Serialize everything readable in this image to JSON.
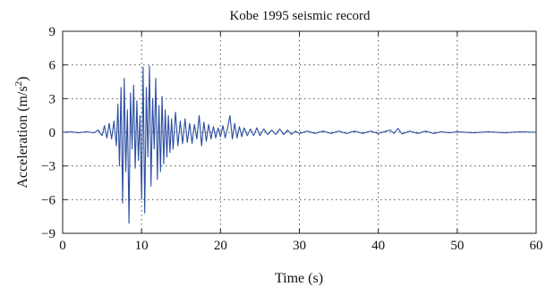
{
  "chart_data": {
    "type": "line",
    "title": "Kobe 1995 seismic record",
    "xlabel": "Time (s)",
    "ylabel_main": "Acceleration (m/s",
    "ylabel_sup": "2",
    "ylabel_end": ")",
    "xlim": [
      0,
      60
    ],
    "ylim": [
      -9,
      9
    ],
    "xticks": [
      0,
      10,
      20,
      30,
      40,
      50,
      60
    ],
    "yticks": [
      -9,
      -6,
      -3,
      0,
      3,
      6,
      9
    ],
    "xtick_labels": [
      "0",
      "10",
      "20",
      "30",
      "40",
      "50",
      "60"
    ],
    "ytick_labels": [
      "−9",
      "−6",
      "−3",
      "0",
      "3",
      "6",
      "9"
    ],
    "grid": true,
    "line_color": "#2b4ea2",
    "series": [
      {
        "x": [
          0,
          1,
          2,
          3,
          4,
          4.5,
          5,
          5.3,
          5.6,
          5.9,
          6.2,
          6.5,
          6.8,
          7.0,
          7.2,
          7.4,
          7.6,
          7.8,
          8.0,
          8.2,
          8.4,
          8.6,
          8.8,
          9.0,
          9.2,
          9.4,
          9.6,
          9.8,
          10.0,
          10.2,
          10.4,
          10.6,
          10.8,
          11.0,
          11.2,
          11.4,
          11.6,
          11.8,
          12.0,
          12.2,
          12.4,
          12.6,
          12.8,
          13.0,
          13.2,
          13.4,
          13.6,
          13.8,
          14.0,
          14.3,
          14.6,
          14.9,
          15.2,
          15.5,
          15.8,
          16.1,
          16.4,
          16.7,
          17.0,
          17.3,
          17.6,
          17.9,
          18.2,
          18.5,
          18.8,
          19.1,
          19.4,
          19.7,
          20.0,
          20.3,
          20.6,
          20.9,
          21.2,
          21.5,
          21.8,
          22.1,
          22.4,
          22.7,
          23.0,
          23.4,
          23.8,
          24.2,
          24.6,
          25.0,
          25.5,
          26.0,
          26.5,
          27.0,
          27.5,
          28.0,
          28.5,
          29.0,
          29.5,
          30.0,
          31,
          32,
          33,
          34,
          35,
          36,
          37,
          38,
          39,
          40,
          41,
          41.5,
          42.0,
          42.5,
          43,
          44,
          45,
          46,
          47,
          48,
          49,
          50,
          52,
          54,
          56,
          58,
          60
        ],
        "y": [
          0,
          0.05,
          -0.05,
          0.05,
          -0.05,
          0.2,
          -0.3,
          0.6,
          -0.5,
          0.8,
          -0.6,
          1.0,
          -1.2,
          2.5,
          -3.0,
          4.0,
          -6.3,
          4.8,
          -3.5,
          2.0,
          -8.1,
          3.5,
          -1.5,
          4.2,
          -3.2,
          2.8,
          -2.5,
          1.5,
          -6.0,
          5.8,
          -7.2,
          4.0,
          -2.2,
          5.9,
          -4.8,
          3.0,
          -1.5,
          4.8,
          -4.2,
          2.4,
          -3.5,
          3.2,
          -2.8,
          2.0,
          -2.2,
          1.5,
          -1.8,
          1.2,
          -1.5,
          1.8,
          -1.2,
          1.0,
          -1.0,
          1.2,
          -0.9,
          0.8,
          -1.0,
          0.7,
          -0.6,
          1.5,
          -1.2,
          0.9,
          -0.8,
          0.7,
          -0.6,
          0.5,
          -0.5,
          0.4,
          -0.4,
          0.6,
          -0.5,
          0.4,
          1.5,
          -0.6,
          0.8,
          -0.5,
          0.5,
          -0.4,
          0.4,
          -0.3,
          0.3,
          -0.3,
          0.4,
          -0.3,
          0.3,
          -0.2,
          0.2,
          -0.2,
          0.3,
          -0.2,
          0.2,
          -0.2,
          0.1,
          -0.1,
          0.1,
          -0.1,
          0.1,
          -0.1,
          0.1,
          -0.1,
          0.1,
          -0.1,
          0.1,
          -0.1,
          0.1,
          0.2,
          -0.1,
          0.35,
          -0.15,
          0.1,
          -0.1,
          0.1,
          -0.1,
          0.05,
          -0.05,
          0.05,
          -0.05,
          0.05,
          -0.05,
          0.05,
          0
        ]
      }
    ]
  }
}
